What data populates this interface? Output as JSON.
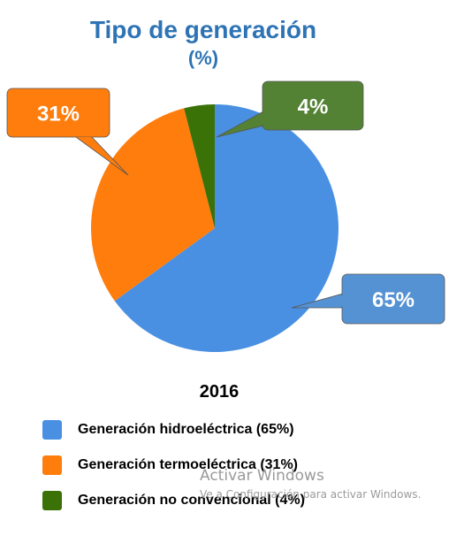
{
  "title": "Tipo de generación",
  "subtitle": "(%)",
  "year_label": "2016",
  "colors": {
    "title": "#2e74b5",
    "hydro": "#4a90e2",
    "thermo": "#ff7f0e",
    "nonconv": "#3a7207"
  },
  "chart_data": {
    "type": "pie",
    "title": "Tipo de generación",
    "subtitle": "(%)",
    "slices": [
      {
        "label": "Generación hidroeléctrica (65%)",
        "value": 65,
        "display": "65%",
        "color": "#4a90e2",
        "callout_color": "#5592d3"
      },
      {
        "label": "Generación termoeléctrica (31%)",
        "value": 31,
        "display": "31%",
        "color": "#fe7d0d",
        "callout_color": "#fe7d0d"
      },
      {
        "label": "Generación no convencional (4%)",
        "value": 4,
        "display": "4%",
        "color": "#3a7207",
        "callout_color": "#548235"
      }
    ],
    "legend_position": "bottom"
  },
  "watermark": {
    "line1": "Activar Windows",
    "line2": "Ve a Configuración para activar Windows."
  }
}
